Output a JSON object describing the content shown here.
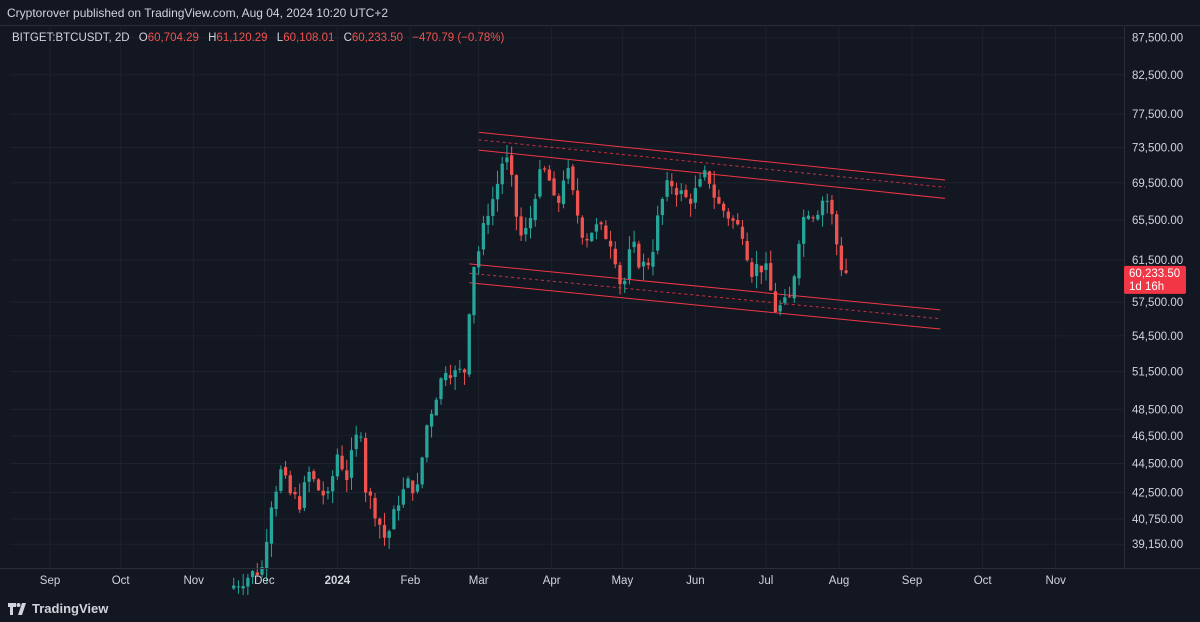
{
  "publish_line": "Cryptorover published on TradingView.com, Aug 04, 2024 10:20 UTC+2",
  "legend": {
    "symbol": "BITGET:BTCUSDT, 2D",
    "o_label": "O",
    "o_value": "60,704.29",
    "h_label": "H",
    "h_value": "61,120.29",
    "l_label": "L",
    "l_value": "60,108.01",
    "c_label": "C",
    "c_value": "60,233.50",
    "change": "−470.79 (−0.78%)"
  },
  "last_price": {
    "value": "60,233.50",
    "countdown": "1d 16h"
  },
  "brand": "TradingView",
  "colors": {
    "up": "#26a69a",
    "down": "#ef5350",
    "channel": "#f23645",
    "background": "#131722",
    "text": "#d1d4dc"
  },
  "chart_data": {
    "type": "candlestick",
    "symbol": "BITGET:BTCUSDT",
    "interval": "2D",
    "y_scale": "log",
    "ylim": [
      37700,
      89000
    ],
    "y_ticks": [
      {
        "value": 87500,
        "label": "87,500.00"
      },
      {
        "value": 82500,
        "label": "82,500.00"
      },
      {
        "value": 77500,
        "label": "77,500.00"
      },
      {
        "value": 73500,
        "label": "73,500.00"
      },
      {
        "value": 69500,
        "label": "69,500.00"
      },
      {
        "value": 65500,
        "label": "65,500.00"
      },
      {
        "value": 61500,
        "label": "61,500.00"
      },
      {
        "value": 57500,
        "label": "57,500.00"
      },
      {
        "value": 54500,
        "label": "54,500.00"
      },
      {
        "value": 51500,
        "label": "51,500.00"
      },
      {
        "value": 48500,
        "label": "48,500.00"
      },
      {
        "value": 46500,
        "label": "46,500.00"
      },
      {
        "value": 44500,
        "label": "44,500.00"
      },
      {
        "value": 42500,
        "label": "42,500.00"
      },
      {
        "value": 40750,
        "label": "40,750.00"
      },
      {
        "value": 39150,
        "label": "39,150.00"
      }
    ],
    "xlim": [
      "2023-08-15",
      "2024-11-30"
    ],
    "x_ticks": [
      {
        "date": "2023-09-01",
        "label": "Sep"
      },
      {
        "date": "2023-10-01",
        "label": "Oct"
      },
      {
        "date": "2023-11-01",
        "label": "Nov"
      },
      {
        "date": "2023-12-01",
        "label": "Dec"
      },
      {
        "date": "2024-01-01",
        "label": "2024",
        "bold": true
      },
      {
        "date": "2024-02-01",
        "label": "Feb"
      },
      {
        "date": "2024-03-01",
        "label": "Mar"
      },
      {
        "date": "2024-04-01",
        "label": "Apr"
      },
      {
        "date": "2024-05-01",
        "label": "May"
      },
      {
        "date": "2024-06-01",
        "label": "Jun"
      },
      {
        "date": "2024-07-01",
        "label": "Jul"
      },
      {
        "date": "2024-08-01",
        "label": "Aug"
      },
      {
        "date": "2024-09-01",
        "label": "Sep"
      },
      {
        "date": "2024-10-01",
        "label": "Oct"
      },
      {
        "date": "2024-11-01",
        "label": "Nov"
      }
    ],
    "price_path": [
      [
        "2023-11-17",
        36500
      ],
      [
        "2023-11-25",
        37200
      ],
      [
        "2023-12-01",
        37700
      ],
      [
        "2023-12-05",
        41900
      ],
      [
        "2023-12-09",
        43900
      ],
      [
        "2023-12-13",
        42400
      ],
      [
        "2023-12-17",
        41800
      ],
      [
        "2023-12-21",
        43800
      ],
      [
        "2023-12-25",
        42700
      ],
      [
        "2023-12-29",
        42100
      ],
      [
        "2024-01-02",
        45200
      ],
      [
        "2024-01-06",
        43600
      ],
      [
        "2024-01-10",
        46300
      ],
      [
        "2024-01-12",
        47000
      ],
      [
        "2024-01-14",
        42800
      ],
      [
        "2024-01-18",
        41300
      ],
      [
        "2024-01-22",
        39600
      ],
      [
        "2024-01-24",
        40000
      ],
      [
        "2024-01-28",
        42000
      ],
      [
        "2024-02-01",
        43100
      ],
      [
        "2024-02-05",
        42700
      ],
      [
        "2024-02-09",
        47300
      ],
      [
        "2024-02-13",
        49700
      ],
      [
        "2024-02-17",
        51900
      ],
      [
        "2024-02-21",
        51300
      ],
      [
        "2024-02-25",
        51600
      ],
      [
        "2024-02-27",
        57000
      ],
      [
        "2024-02-29",
        61100
      ],
      [
        "2024-03-03",
        63100
      ],
      [
        "2024-03-05",
        66000
      ],
      [
        "2024-03-09",
        68300
      ],
      [
        "2024-03-13",
        73000
      ],
      [
        "2024-03-17",
        68400
      ],
      [
        "2024-03-19",
        63600
      ],
      [
        "2024-03-23",
        64500
      ],
      [
        "2024-03-27",
        69900
      ],
      [
        "2024-03-31",
        70900
      ],
      [
        "2024-04-04",
        66200
      ],
      [
        "2024-04-08",
        71600
      ],
      [
        "2024-04-12",
        67000
      ],
      [
        "2024-04-16",
        63500
      ],
      [
        "2024-04-20",
        64800
      ],
      [
        "2024-04-24",
        64300
      ],
      [
        "2024-04-28",
        63100
      ],
      [
        "2024-04-30",
        60500
      ],
      [
        "2024-05-02",
        58300
      ],
      [
        "2024-05-06",
        63200
      ],
      [
        "2024-05-10",
        60800
      ],
      [
        "2024-05-14",
        61500
      ],
      [
        "2024-05-18",
        66900
      ],
      [
        "2024-05-22",
        69700
      ],
      [
        "2024-05-26",
        68500
      ],
      [
        "2024-05-30",
        67500
      ],
      [
        "2024-06-03",
        68800
      ],
      [
        "2024-06-07",
        70700
      ],
      [
        "2024-06-11",
        67300
      ],
      [
        "2024-06-15",
        66300
      ],
      [
        "2024-06-19",
        65000
      ],
      [
        "2024-06-23",
        64200
      ],
      [
        "2024-06-25",
        60300
      ],
      [
        "2024-06-29",
        61000
      ],
      [
        "2024-07-03",
        60200
      ],
      [
        "2024-07-05",
        56800
      ],
      [
        "2024-07-09",
        57100
      ],
      [
        "2024-07-13",
        57900
      ],
      [
        "2024-07-15",
        62800
      ],
      [
        "2024-07-19",
        66800
      ],
      [
        "2024-07-23",
        66200
      ],
      [
        "2024-07-27",
        68200
      ],
      [
        "2024-07-29",
        67000
      ],
      [
        "2024-07-31",
        64700
      ],
      [
        "2024-08-02",
        61500
      ],
      [
        "2024-08-04",
        60233.5
      ]
    ],
    "channel": {
      "upper": [
        {
          "from": [
            "2024-03-01",
            75300
          ],
          "to": [
            "2024-09-15",
            69800
          ]
        },
        {
          "from": [
            "2024-03-01",
            74400
          ],
          "to": [
            "2024-09-15",
            69000
          ]
        },
        {
          "from": [
            "2024-03-01",
            73200
          ],
          "to": [
            "2024-09-15",
            67800
          ]
        }
      ],
      "lower": [
        {
          "from": [
            "2024-02-26",
            61100
          ],
          "to": [
            "2024-09-13",
            56800
          ]
        },
        {
          "from": [
            "2024-02-26",
            60200
          ],
          "to": [
            "2024-09-13",
            56000
          ]
        },
        {
          "from": [
            "2024-02-26",
            59300
          ],
          "to": [
            "2024-09-13",
            55100
          ]
        }
      ]
    },
    "last_close": 60233.5
  }
}
